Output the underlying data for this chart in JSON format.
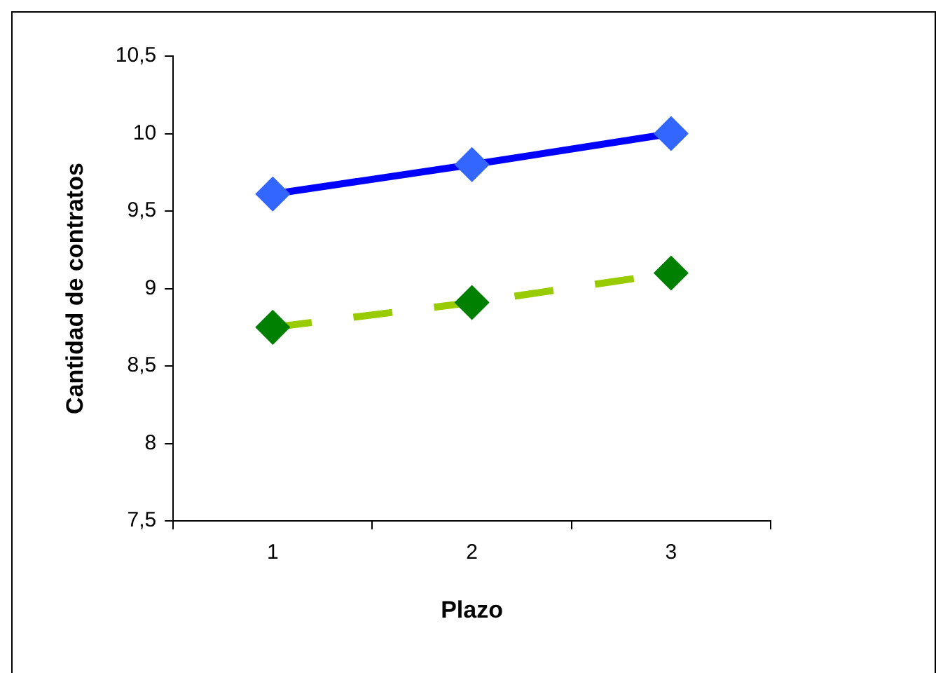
{
  "chart_data": {
    "type": "line",
    "xlabel": "Plazo",
    "ylabel": "Cantidad de contratos",
    "categories": [
      "1",
      "2",
      "3"
    ],
    "series": [
      {
        "color": "#0000ff",
        "colors": [
          "#3366ff",
          "#3366ff",
          "#3366ff"
        ],
        "values": [
          9.61,
          9.8,
          10.0
        ],
        "line_style": "solid"
      },
      {
        "color": "#99cc00",
        "colors": [
          "#008000",
          "#008000",
          "#008000"
        ],
        "values": [
          8.75,
          8.91,
          9.1
        ],
        "line_style": "dashed"
      }
    ],
    "ylim": [
      7.5,
      10.5
    ],
    "yticks": [
      {
        "value": 7.5,
        "label": "7,5"
      },
      8,
      {
        "value": 8.5,
        "label": "8,5"
      },
      9,
      {
        "value": 9.5,
        "label": "9,5"
      },
      10,
      {
        "value": 10.5,
        "label": "10,5"
      }
    ],
    "grid": false,
    "legend": false,
    "marker": "diamond"
  }
}
